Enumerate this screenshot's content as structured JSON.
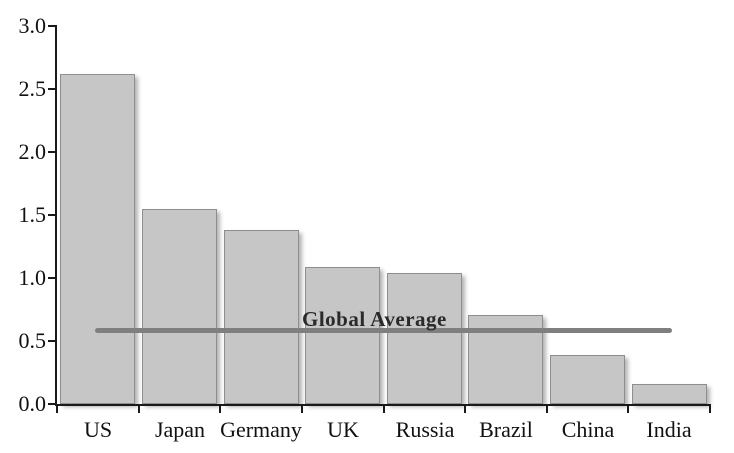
{
  "chart_data": {
    "type": "bar",
    "title": "",
    "xlabel": "",
    "ylabel": "",
    "categories": [
      "US",
      "Japan",
      "Germany",
      "UK",
      "Russia",
      "Brazil",
      "China",
      "India"
    ],
    "values": [
      2.62,
      1.55,
      1.38,
      1.09,
      1.04,
      0.71,
      0.39,
      0.16
    ],
    "ylim": [
      0.0,
      3.0
    ],
    "y_tick_labels": [
      "0.0",
      "0.5",
      "1.0",
      "1.5",
      "2.0",
      "2.5",
      "3.0"
    ],
    "y_tick_values": [
      0.0,
      0.5,
      1.0,
      1.5,
      2.0,
      2.5,
      3.0
    ],
    "grid": false,
    "legend": false,
    "annotations": [
      {
        "type": "hline",
        "label": "Global Average",
        "value": 0.58
      }
    ],
    "colors": {
      "bar_fill": "#c7c6c6",
      "bar_border": "#8e8e8e",
      "axis": "#1a1a1a",
      "text": "#111111",
      "average_line": "#7f7f7f",
      "average_label": "#2a2a2a"
    }
  }
}
